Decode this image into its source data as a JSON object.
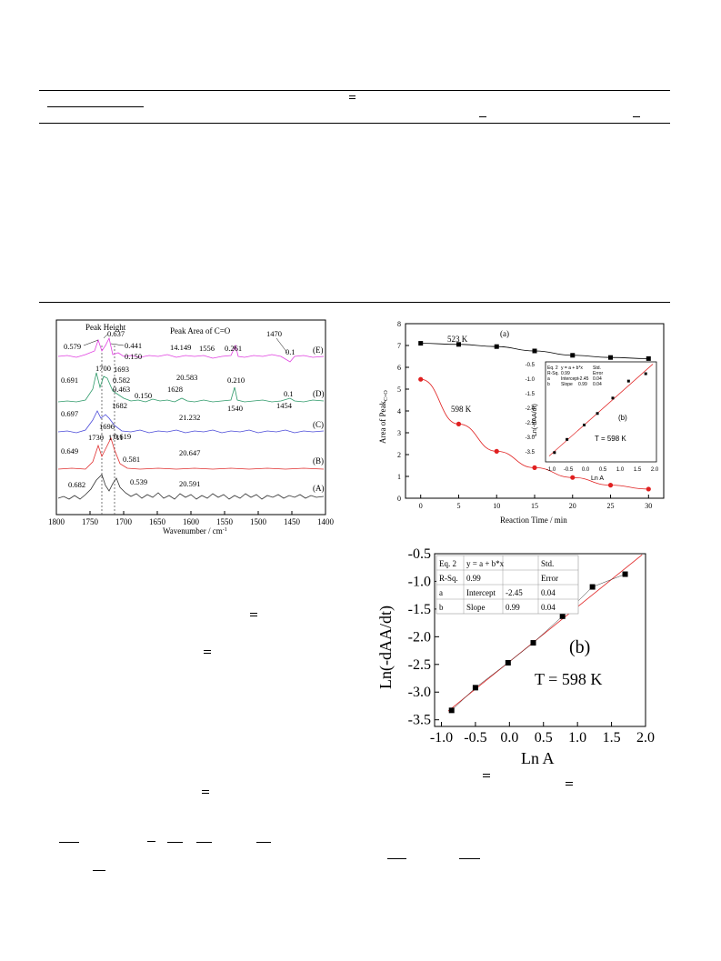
{
  "fig_spectra": {
    "peak_height_label": "Peak Height",
    "peak_area_label": "Peak Area of C=O",
    "xlabel": "Wavenumber / cm",
    "xlabel_sup": "-1",
    "xticks": [
      "1800",
      "1750",
      "1700",
      "1650",
      "1600",
      "1550",
      "1500",
      "1450",
      "1400"
    ],
    "curves": [
      {
        "id": "E",
        "label": "(E)",
        "color": "#e040e0"
      },
      {
        "id": "D",
        "label": "(D)",
        "color": "#2f9a6a"
      },
      {
        "id": "C",
        "label": "(C)",
        "color": "#4a4ad8"
      },
      {
        "id": "B",
        "label": "(B)",
        "color": "#e03030"
      },
      {
        "id": "A",
        "label": "(A)",
        "color": "#303030"
      }
    ],
    "annotations": [
      "0.637",
      "0.579",
      "0.441",
      "0.150",
      "14.149",
      "1556",
      "0.261",
      "1470",
      "0.1",
      "1700",
      "1693",
      "0.691",
      "0.582",
      "20.583",
      "0.463",
      "1628",
      "0.150",
      "1682",
      "0.210",
      "0.1",
      "1540",
      "1454",
      "0.697",
      "1696",
      "0.619",
      "21.232",
      "1730",
      "1711",
      "0.649",
      "0.581",
      "20.647",
      "0.682",
      "0.539",
      "20.591"
    ]
  },
  "chart_data": [
    {
      "type": "scatter",
      "title": "(a)",
      "xlabel": "Reaction Time / min",
      "ylabel": "Area of Peak",
      "ylabel_sub": "C=O",
      "xlim": [
        -2,
        32
      ],
      "ylim": [
        0,
        8
      ],
      "xticks": [
        "0",
        "5",
        "10",
        "15",
        "20",
        "25",
        "30"
      ],
      "yticks": [
        "0",
        "1",
        "2",
        "3",
        "4",
        "5",
        "6",
        "7",
        "8"
      ],
      "series": [
        {
          "name": "523 K",
          "color": "#000000",
          "marker": "square",
          "x": [
            0,
            5,
            10,
            15,
            20,
            25,
            30
          ],
          "y": [
            7.1,
            7.05,
            6.95,
            6.75,
            6.55,
            6.45,
            6.4
          ]
        },
        {
          "name": "598 K",
          "color": "#e02020",
          "marker": "circle",
          "x": [
            0,
            5,
            10,
            15,
            20,
            25,
            30
          ],
          "y": [
            5.45,
            3.4,
            2.15,
            1.4,
            0.95,
            0.6,
            0.42
          ]
        }
      ],
      "inset": {
        "label": "(b)",
        "temp": "T = 598 K",
        "xlabel": "Ln A",
        "ylabel": "Ln(-dAA/dt)",
        "xticks": [
          "-1.0",
          "-0.5",
          "0.0",
          "0.5",
          "1.0",
          "1.5",
          "2.0"
        ],
        "yticks": [
          "-0.5",
          "-1.0",
          "-1.5",
          "-2.0",
          "-2.5",
          "-3.0",
          "-3.5"
        ]
      }
    },
    {
      "type": "scatter",
      "title": "(b)",
      "temp": "T = 598 K",
      "xlabel": "Ln A",
      "ylabel": "Ln(-dAA/dt)",
      "xlim": [
        -1.1,
        2.0
      ],
      "ylim": [
        -3.62,
        -0.5
      ],
      "xticks": [
        "-1.0",
        "-0.5",
        "0.0",
        "0.5",
        "1.0",
        "1.5",
        "2.0"
      ],
      "yticks": [
        "-0.5",
        "-1.0",
        "-1.5",
        "-2.0",
        "-2.5",
        "-3.0",
        "-3.5"
      ],
      "series": [
        {
          "name": "",
          "color": "#000000",
          "marker": "square",
          "x": [
            -0.85,
            -0.5,
            -0.02,
            0.35,
            0.78,
            1.22,
            1.7
          ],
          "y": [
            -3.33,
            -2.92,
            -2.47,
            -2.11,
            -1.63,
            -1.1,
            -0.87
          ]
        }
      ],
      "fit": {
        "intercept": -2.45,
        "slope": 0.99,
        "color": "#e02020"
      },
      "table": [
        [
          "Eq. 2",
          "y = a + b*x",
          "",
          "Std."
        ],
        [
          "R-Sq.",
          "0.99",
          "",
          "Error"
        ],
        [
          "a",
          "Intercept",
          "-2.45",
          "0.04"
        ],
        [
          "b",
          "Slope",
          "0.99",
          "0.04"
        ]
      ]
    }
  ]
}
